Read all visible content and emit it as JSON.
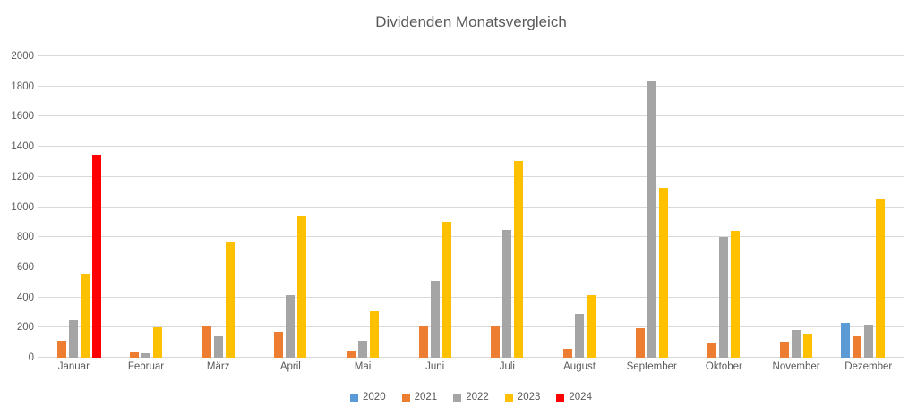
{
  "chart_data": {
    "type": "bar",
    "title": "Dividenden Monatsvergleich",
    "categories": [
      "Januar",
      "Februar",
      "März",
      "April",
      "Mai",
      "Juni",
      "Juli",
      "August",
      "September",
      "Oktober",
      "November",
      "Dezember"
    ],
    "series": [
      {
        "name": "2020",
        "color": "#5B9BD5",
        "values": [
          null,
          null,
          null,
          null,
          null,
          null,
          null,
          null,
          null,
          null,
          null,
          230
        ]
      },
      {
        "name": "2021",
        "color": "#ED7D31",
        "values": [
          110,
          40,
          210,
          170,
          45,
          205,
          210,
          60,
          195,
          100,
          105,
          145
        ]
      },
      {
        "name": "2022",
        "color": "#A5A5A5",
        "values": [
          250,
          30,
          140,
          415,
          110,
          510,
          850,
          290,
          1835,
          800,
          185,
          220
        ]
      },
      {
        "name": "2023",
        "color": "#FFC000",
        "values": [
          560,
          200,
          770,
          935,
          310,
          900,
          1305,
          415,
          1130,
          840,
          160,
          1055
        ]
      },
      {
        "name": "2024",
        "color": "#FF0000",
        "values": [
          1350,
          null,
          null,
          null,
          null,
          null,
          null,
          null,
          null,
          null,
          null,
          null
        ]
      }
    ],
    "ylim": [
      0,
      2000
    ],
    "yticks": [
      0,
      200,
      400,
      600,
      800,
      1000,
      1200,
      1400,
      1600,
      1800,
      2000
    ],
    "grid": true,
    "legend_position": "bottom",
    "legend_labels": [
      "2020",
      "2021",
      "2022",
      "2023",
      "2024"
    ],
    "text_color": "#595959",
    "gridline_color": "#D9D9D9",
    "background_color": "#FFFFFF"
  }
}
